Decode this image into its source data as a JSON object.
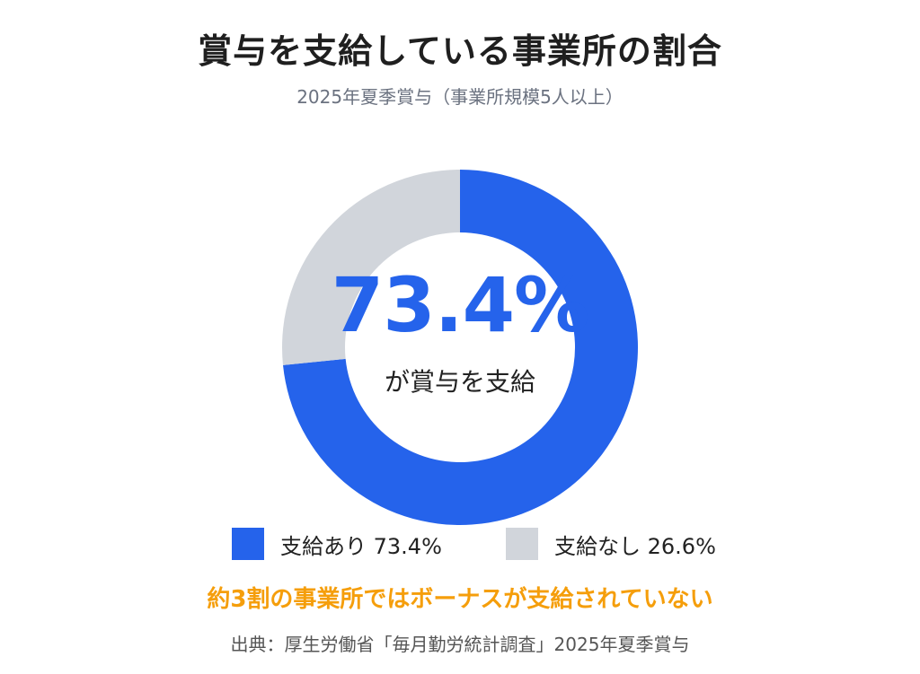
{
  "title": "賞与を支給している事業所の割合",
  "subtitle": "2025年夏季賞与（事業所規模5人以上）",
  "center": {
    "value": "73.4%",
    "label": "が賞与を支給"
  },
  "legend": [
    {
      "label": "支給あり 73.4%",
      "color": "#2563eb"
    },
    {
      "label": "支給なし 26.6%",
      "color": "#d1d5db"
    }
  ],
  "note": "約3割の事業所ではボーナスが支給されていない",
  "source": "出典：厚生労働省「毎月勤労統計調査」2025年夏季賞与",
  "chart_data": {
    "type": "pie",
    "style": "donut",
    "categories": [
      "支給あり",
      "支給なし"
    ],
    "values": [
      73.4,
      26.6
    ],
    "colors": [
      "#2563eb",
      "#d1d5db"
    ],
    "unit": "%"
  }
}
